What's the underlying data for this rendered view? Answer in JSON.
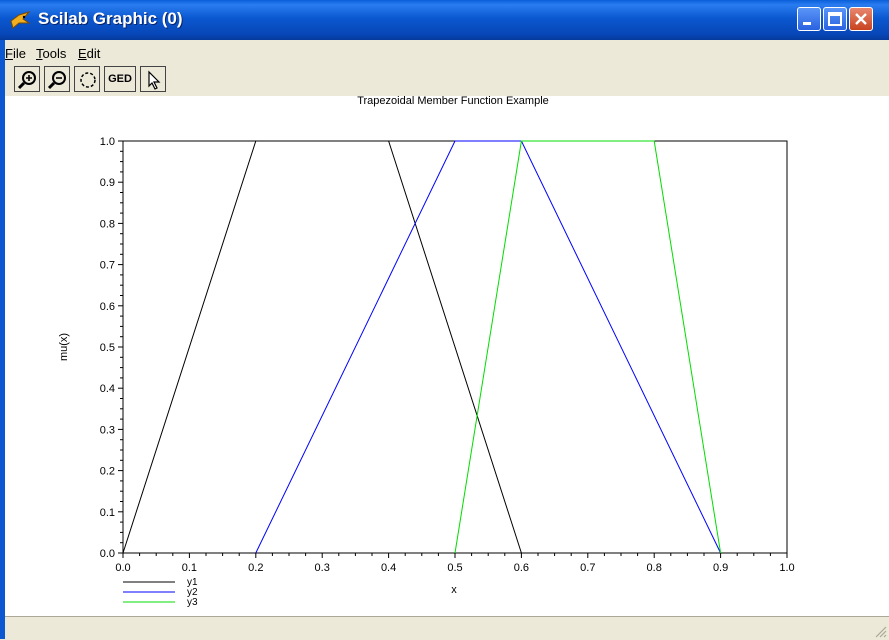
{
  "window": {
    "title": "Scilab Graphic (0)",
    "app_icon": "scilab-bird-icon",
    "controls": [
      "minimize-icon",
      "maximize-icon",
      "close-icon"
    ]
  },
  "menu": {
    "items": [
      {
        "label": "File",
        "underline": "F"
      },
      {
        "label": "Tools",
        "underline": "T"
      },
      {
        "label": "Edit",
        "underline": "E"
      }
    ]
  },
  "toolbar": {
    "buttons": [
      {
        "name": "zoom-in-icon"
      },
      {
        "name": "zoom-out-icon"
      },
      {
        "name": "rotate-icon"
      },
      {
        "name": "ged-button",
        "label": "GED"
      },
      {
        "name": "pointer-arrow-icon"
      }
    ]
  },
  "chart_data": {
    "type": "line",
    "title": "Trapezoidal Member Function Example",
    "xlabel": "x",
    "ylabel": "mu(x)",
    "xlim": [
      0.0,
      1.0
    ],
    "ylim": [
      0.0,
      1.0
    ],
    "x_ticks": [
      "0.0",
      "0.1",
      "0.2",
      "0.3",
      "0.4",
      "0.5",
      "0.6",
      "0.7",
      "0.8",
      "0.9",
      "1.0"
    ],
    "y_ticks": [
      "0.0",
      "0.1",
      "0.2",
      "0.3",
      "0.4",
      "0.5",
      "0.6",
      "0.7",
      "0.8",
      "0.9",
      "1.0"
    ],
    "grid": false,
    "legend_position": "bottom-left",
    "series": [
      {
        "name": "y1",
        "color": "#000000",
        "x": [
          0.0,
          0.2,
          0.4,
          0.6
        ],
        "y": [
          0.0,
          1.0,
          1.0,
          0.0
        ]
      },
      {
        "name": "y2",
        "color": "#0000ff",
        "x": [
          0.2,
          0.5,
          0.6,
          0.9
        ],
        "y": [
          0.0,
          1.0,
          1.0,
          0.0
        ]
      },
      {
        "name": "y3",
        "color": "#00dd00",
        "x": [
          0.5,
          0.6,
          0.8,
          0.9
        ],
        "y": [
          0.0,
          1.0,
          1.0,
          0.0
        ]
      }
    ]
  }
}
